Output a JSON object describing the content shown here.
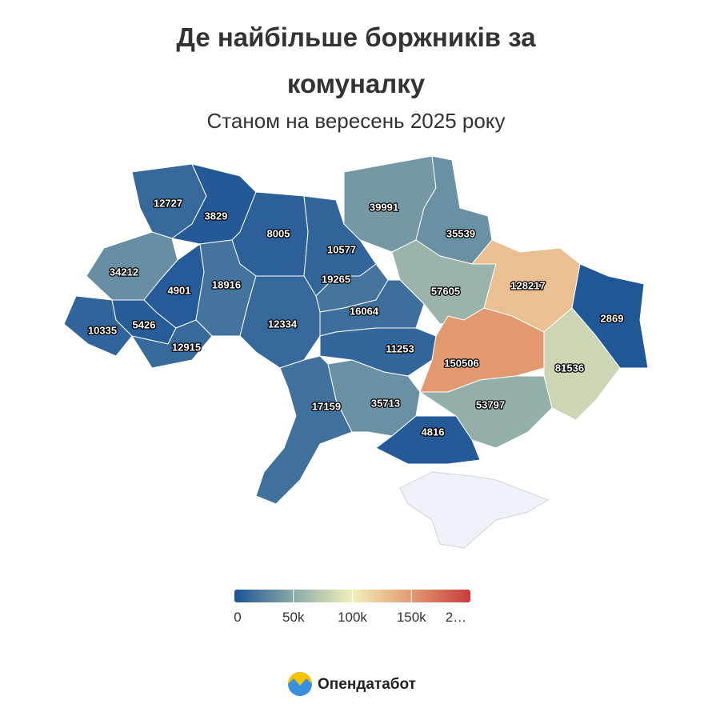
{
  "title": "Де найбільше боржників за комуналку",
  "subtitle": "Станом на вересень 2025 року",
  "map": {
    "values": [
      12727,
      3829,
      8005,
      10577,
      39991,
      35539,
      34212,
      4901,
      18916,
      19265,
      57605,
      128217,
      10335,
      5426,
      12915,
      12334,
      16064,
      11253,
      2869,
      150506,
      81536,
      17159,
      35713,
      53797,
      4816
    ],
    "scale": {
      "range": [
        0,
        200000
      ],
      "colors": [
        "#1a5296",
        "#8aaaa8",
        "#f2efbb",
        "#e39a70",
        "#c83c3c"
      ],
      "ticks": [
        0,
        {
          "value": 50000,
          "label": "50k"
        },
        {
          "value": 100000,
          "label": "100k"
        },
        {
          "value": 150000,
          "label": "150k"
        },
        {
          "value": 200000,
          "label": "2…"
        }
      ]
    }
  },
  "brand": "Опендатабот"
}
